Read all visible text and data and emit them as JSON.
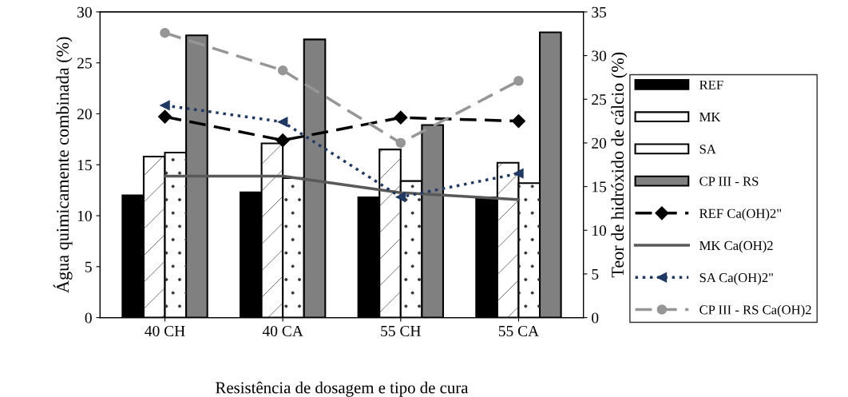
{
  "chart_data": {
    "type": "bar",
    "xlabel": "Resistência de dosagem e tipo de cura",
    "ylabel": "Água quimicamente combinada (%)",
    "y2label": "Teor de hidróxido de cálcio (%)",
    "categories": [
      "40 CH",
      "40 CA",
      "55 CH",
      "55 CA"
    ],
    "ylim": [
      0,
      30
    ],
    "yticks": [
      0,
      5,
      10,
      15,
      20,
      25,
      30
    ],
    "y2lim": [
      0,
      35
    ],
    "y2ticks": [
      0,
      5,
      10,
      15,
      20,
      25,
      30,
      35
    ],
    "legend": "right",
    "grid": false,
    "series": [
      {
        "name": "REF",
        "color": "#000000",
        "values": [
          12.0,
          12.3,
          11.8,
          11.8
        ]
      },
      {
        "name": "MK",
        "color": "#ffffff",
        "values": [
          15.8,
          17.1,
          16.5,
          15.2
        ]
      },
      {
        "name": "SA",
        "color": "#ffffff",
        "values": [
          16.2,
          13.7,
          13.4,
          13.2
        ]
      },
      {
        "name": "CP III - RS",
        "color": "#808080",
        "values": [
          27.7,
          27.3,
          18.9,
          28.0
        ]
      },
      {
        "name": "REF Ca(OH)2\"",
        "type": "line",
        "axis": "y2",
        "color": "#000000",
        "marker": "diamond",
        "line_style": "dashed",
        "values": [
          23.0,
          20.3,
          22.9,
          22.5
        ]
      },
      {
        "name": "MK Ca(OH)2",
        "type": "line",
        "axis": "y2",
        "color": "#595959",
        "marker": "none",
        "line_style": "solid",
        "values": [
          16.2,
          16.2,
          14.3,
          13.5
        ]
      },
      {
        "name": "SA Ca(OH)2\"",
        "type": "line",
        "axis": "y2",
        "color": "#1f3864",
        "marker": "triangle",
        "line_style": "dotted",
        "values": [
          24.3,
          22.4,
          13.8,
          16.5
        ]
      },
      {
        "name": "CP III - RS Ca(OH)2",
        "type": "line",
        "axis": "y2",
        "color": "#969696",
        "marker": "circle",
        "line_style": "dashed",
        "values": [
          32.6,
          28.3,
          20.0,
          27.1
        ]
      }
    ]
  }
}
